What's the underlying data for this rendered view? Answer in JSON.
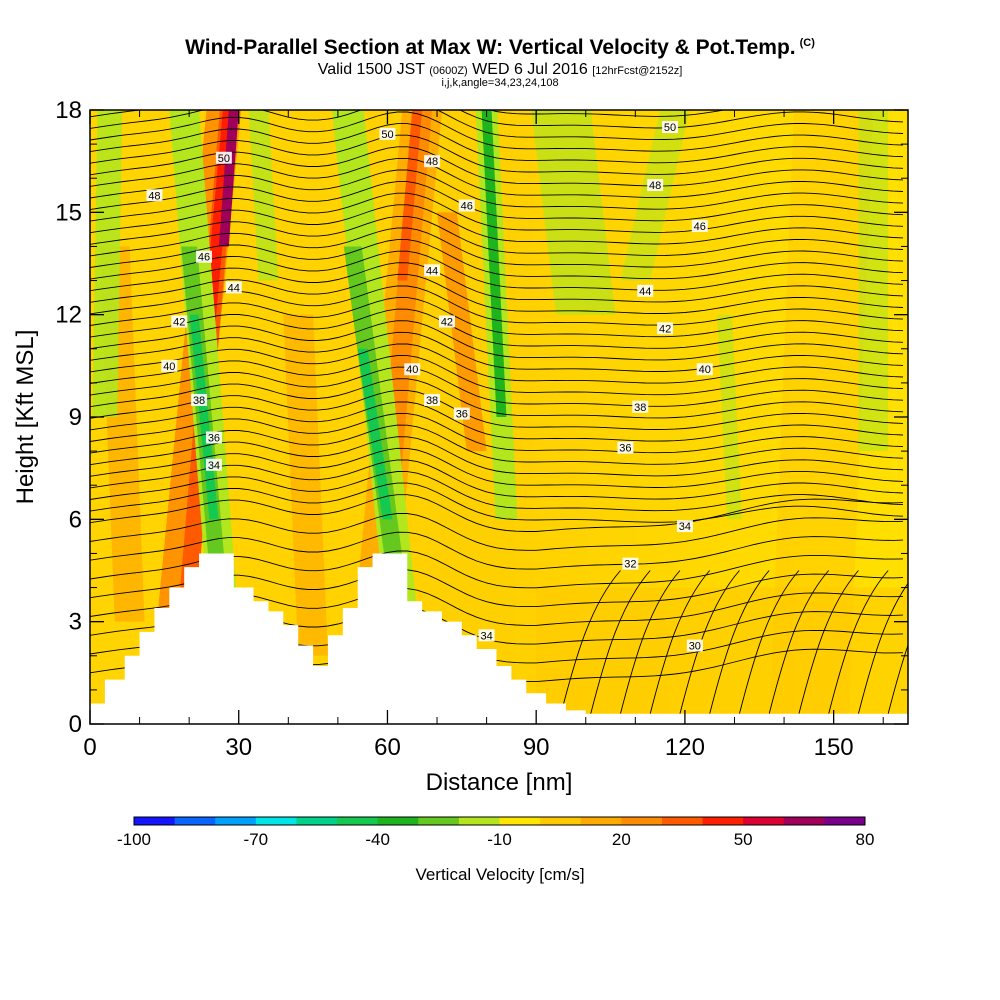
{
  "header": {
    "title": "Wind-Parallel Section at Max W: Vertical Velocity & Pot.Temp.",
    "copyright": "(C)",
    "valid_prefix": "Valid 1500 JST",
    "valid_utc": "(0600Z)",
    "valid_date": "WED 6 Jul 2016",
    "forecast_info": "[12hrFcst@2152z]",
    "grid_info": "i,j,k,angle=34,23,24,108"
  },
  "chart_data": {
    "type": "heatmap",
    "xlabel": "Distance [nm]",
    "ylabel": "Height [Kft MSL]",
    "xlim": [
      0,
      165
    ],
    "ylim": [
      0,
      18
    ],
    "x_ticks": [
      0,
      30,
      60,
      90,
      120,
      150
    ],
    "y_ticks": [
      0,
      3,
      6,
      9,
      12,
      15,
      18
    ],
    "colorbar": {
      "label": "Vertical Velocity [cm/s]",
      "tick_labels": [
        -100,
        -70,
        -40,
        -10,
        20,
        50,
        80
      ],
      "min": -100,
      "max": 80,
      "colors": [
        "#1414ff",
        "#0a64ff",
        "#00a0ff",
        "#00e6e6",
        "#00d28c",
        "#14c850",
        "#1eb41e",
        "#64c81e",
        "#b4e61e",
        "#ffe600",
        "#ffc800",
        "#ffaa00",
        "#ff8c00",
        "#ff5a00",
        "#ff1e00",
        "#dc0032",
        "#a0005a",
        "#78008c"
      ]
    },
    "theta_contour_labels": [
      {
        "text": "30",
        "x": 122,
        "y": 2.3
      },
      {
        "text": "32",
        "x": 109,
        "y": 4.7
      },
      {
        "text": "34",
        "x": 120,
        "y": 5.8
      },
      {
        "text": "34",
        "x": 80,
        "y": 2.6
      },
      {
        "text": "34",
        "x": 25,
        "y": 7.6
      },
      {
        "text": "36",
        "x": 25,
        "y": 8.4
      },
      {
        "text": "36",
        "x": 108,
        "y": 8.1
      },
      {
        "text": "36",
        "x": 75,
        "y": 9.1
      },
      {
        "text": "38",
        "x": 22,
        "y": 9.5
      },
      {
        "text": "38",
        "x": 69,
        "y": 9.5
      },
      {
        "text": "38",
        "x": 111,
        "y": 9.3
      },
      {
        "text": "40",
        "x": 16,
        "y": 10.5
      },
      {
        "text": "40",
        "x": 65,
        "y": 10.4
      },
      {
        "text": "40",
        "x": 124,
        "y": 10.4
      },
      {
        "text": "42",
        "x": 18,
        "y": 11.8
      },
      {
        "text": "42",
        "x": 72,
        "y": 11.8
      },
      {
        "text": "42",
        "x": 116,
        "y": 11.6
      },
      {
        "text": "44",
        "x": 29,
        "y": 12.8
      },
      {
        "text": "44",
        "x": 69,
        "y": 13.3
      },
      {
        "text": "44",
        "x": 112,
        "y": 12.7
      },
      {
        "text": "46",
        "x": 23,
        "y": 13.7
      },
      {
        "text": "46",
        "x": 76,
        "y": 15.2
      },
      {
        "text": "46",
        "x": 123,
        "y": 14.6
      },
      {
        "text": "48",
        "x": 13,
        "y": 15.5
      },
      {
        "text": "48",
        "x": 69,
        "y": 16.5
      },
      {
        "text": "48",
        "x": 114,
        "y": 15.8
      },
      {
        "text": "50",
        "x": 27,
        "y": 16.6
      },
      {
        "text": "50",
        "x": 60,
        "y": 17.3
      },
      {
        "text": "50",
        "x": 117,
        "y": 17.5
      }
    ],
    "terrain_profile": [
      {
        "x": 0,
        "y": 0.6
      },
      {
        "x": 3,
        "y": 1.3
      },
      {
        "x": 7,
        "y": 2.0
      },
      {
        "x": 10,
        "y": 2.7
      },
      {
        "x": 13,
        "y": 3.4
      },
      {
        "x": 16,
        "y": 4.0
      },
      {
        "x": 19,
        "y": 4.6
      },
      {
        "x": 22,
        "y": 5.0
      },
      {
        "x": 26,
        "y": 5.0
      },
      {
        "x": 29,
        "y": 4.0
      },
      {
        "x": 33,
        "y": 3.6
      },
      {
        "x": 36,
        "y": 3.3
      },
      {
        "x": 39,
        "y": 2.9
      },
      {
        "x": 42,
        "y": 2.3
      },
      {
        "x": 45,
        "y": 1.7
      },
      {
        "x": 48,
        "y": 2.6
      },
      {
        "x": 51,
        "y": 3.4
      },
      {
        "x": 54,
        "y": 4.6
      },
      {
        "x": 57,
        "y": 5.0
      },
      {
        "x": 61,
        "y": 5.0
      },
      {
        "x": 64,
        "y": 3.6
      },
      {
        "x": 67,
        "y": 3.3
      },
      {
        "x": 71,
        "y": 3.0
      },
      {
        "x": 75,
        "y": 2.6
      },
      {
        "x": 78,
        "y": 2.2
      },
      {
        "x": 82,
        "y": 1.7
      },
      {
        "x": 85,
        "y": 1.3
      },
      {
        "x": 88,
        "y": 0.9
      },
      {
        "x": 92,
        "y": 0.6
      },
      {
        "x": 96,
        "y": 0.4
      },
      {
        "x": 100,
        "y": 0.3
      },
      {
        "x": 165,
        "y": 0.3
      }
    ]
  }
}
